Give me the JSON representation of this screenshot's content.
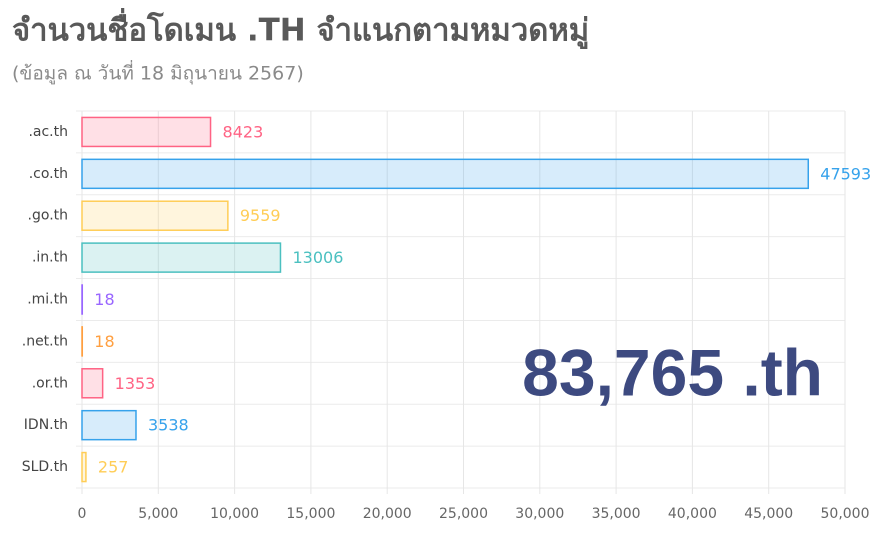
{
  "chart_data": {
    "type": "hbar",
    "title": "จำนวนชื่อโดเมน .TH จำแนกตามหมวดหมู่",
    "subtitle": "(ข้อมูล ณ วันที่ 18 มิถุนายน 2567)",
    "annotation": "83,765 .th",
    "categories": [
      ".ac.th",
      ".co.th",
      ".go.th",
      ".in.th",
      ".mi.th",
      ".net.th",
      ".or.th",
      "IDN.th",
      "SLD.th"
    ],
    "values": [
      8423,
      47593,
      9559,
      13006,
      18,
      18,
      1353,
      3538,
      257
    ],
    "colors": [
      "#ff6384",
      "#36a2eb",
      "#ffcd56",
      "#4bc0c0",
      "#9966ff",
      "#ff9f40",
      "#ff6384",
      "#36a2eb",
      "#ffcd56"
    ],
    "xlim": [
      0,
      50000
    ],
    "xticks": [
      0,
      {
        "value": 5000,
        "label": "5,000"
      },
      {
        "value": 10000,
        "label": "10,000"
      },
      {
        "value": 15000,
        "label": "15,000"
      },
      {
        "value": 20000,
        "label": "20,000"
      },
      {
        "value": 25000,
        "label": "25,000"
      },
      {
        "value": 30000,
        "label": "30,000"
      },
      {
        "value": 35000,
        "label": "35,000"
      },
      {
        "value": 40000,
        "label": "40,000"
      },
      {
        "value": 45000,
        "label": "45,000"
      },
      {
        "value": 50000,
        "label": "50,000"
      }
    ],
    "grid": true
  }
}
